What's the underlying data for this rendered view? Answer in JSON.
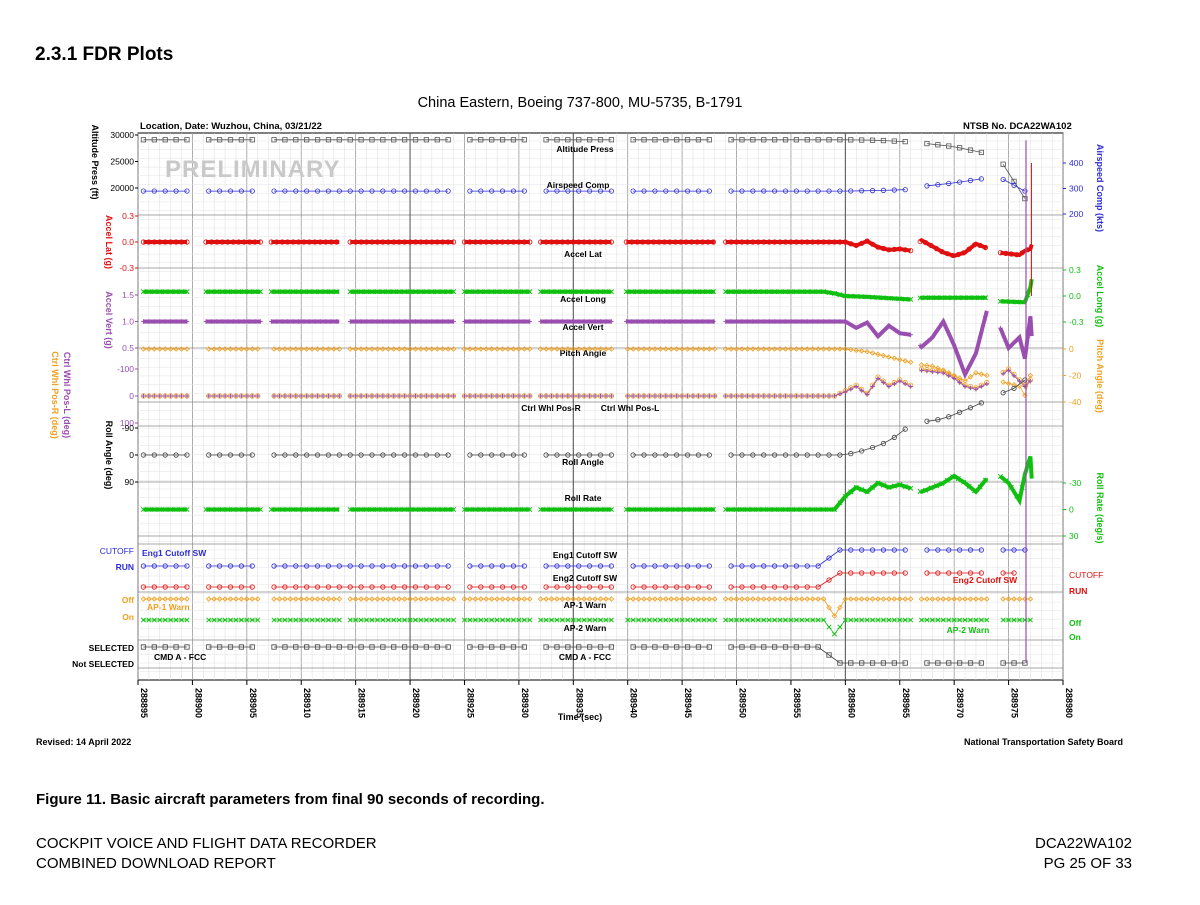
{
  "section": {
    "heading": "2.3.1  FDR Plots"
  },
  "figure": {
    "caption": "Figure 11. Basic aircraft parameters from final 90 seconds of recording.",
    "revised": "Revised: 14 April 2022",
    "board": "National Transportation Safety Board"
  },
  "footer": {
    "left_line1": "COCKPIT VOICE AND FLIGHT DATA RECORDER",
    "left_line2": "COMBINED DOWNLOAD REPORT",
    "right_line1": "DCA22WA102",
    "right_line2": "PG 25 OF 33"
  },
  "colors": {
    "altitude": "#555555",
    "airspeed": "#2b2bd6",
    "accel_lat": "#e01010",
    "accel_long": "#10c010",
    "accel_vert": "#9a4fb0",
    "pitch": "#f0a020",
    "ctrl_whl_r": "#f0a020",
    "ctrl_whl_l": "#9a4fb0",
    "roll_angle": "#444444",
    "roll_rate": "#10c010",
    "eng1": "#2b2bd6",
    "eng2": "#e01010",
    "ap1": "#f0a020",
    "ap2": "#10c010",
    "cmd_a": "#444444"
  },
  "chart_data": {
    "type": "line",
    "title": "China Eastern, Boeing 737-800, MU-5735, B-1791",
    "location_label": "Location, Date: Wuzhou, China, 03/21/22",
    "case_label": "NTSB No. DCA22WA102",
    "watermark": "PRELIMINARY",
    "xlabel": "Time (sec)",
    "xlim": [
      288895,
      288980
    ],
    "x_ticks": [
      "288895",
      "288900",
      "288905",
      "288910",
      "288915",
      "288920",
      "288925",
      "288930",
      "288935",
      "288940",
      "288945",
      "288950",
      "288955",
      "288960",
      "288965",
      "288970",
      "288975",
      "288980"
    ],
    "data_gaps": [
      [
        288899.5,
        288901.2
      ],
      [
        288906.3,
        288907.2
      ],
      [
        288913.6,
        288914.5
      ],
      [
        288924.0,
        288925.0
      ],
      [
        288931.0,
        288932.0
      ],
      [
        288938.5,
        288939.8
      ],
      [
        288948.0,
        288949.0
      ],
      [
        288966.0,
        288966.8
      ],
      [
        288973.0,
        288974.2
      ]
    ],
    "axes": {
      "altitude": {
        "label": "Altitude Press (ft)",
        "ticks": [
          "30000",
          "25000",
          "20000"
        ]
      },
      "airspeed": {
        "label": "Airspeed Comp (kts)",
        "ticks": [
          "400",
          "300",
          "200"
        ]
      },
      "accel_lat": {
        "label": "Accel Lat (g)",
        "ticks": [
          "0.3",
          "0.0",
          "-0.3"
        ]
      },
      "accel_long": {
        "label": "Accel Long (g)",
        "ticks": [
          "0.3",
          "0.0",
          "-0.3"
        ]
      },
      "accel_vert": {
        "label": "Accel Vert (g)",
        "ticks": [
          "1.5",
          "1.0",
          "0.5"
        ]
      },
      "pitch": {
        "label": "Pitch Angle (deg)",
        "ticks": [
          "0",
          "-20",
          "-40"
        ]
      },
      "ctrl_whl": {
        "label_l": "Ctrl Whl Pos-L (deg)",
        "label_r": "Ctrl Whl Pos-R (deg)",
        "ticks": [
          "-100",
          "0",
          "100"
        ]
      },
      "roll_angle": {
        "label": "Roll Angle (deg)",
        "ticks": [
          "-90",
          "0",
          "90"
        ]
      },
      "roll_rate": {
        "label": "Roll Rate (deg/s)",
        "ticks": [
          "-30",
          "0",
          "30"
        ]
      }
    },
    "discrete_labels": {
      "eng1_cutoff": "CUTOFF",
      "eng1_run": "RUN",
      "eng1_name": "Eng1 Cutoff SW",
      "eng2_cutoff": "CUTOFF",
      "eng2_run": "RUN",
      "eng2_name": "Eng2 Cutoff SW",
      "ap1_off": "Off",
      "ap1_on": "On",
      "ap1_name": "AP-1 Warn",
      "ap2_off": "Off",
      "ap2_on": "On",
      "ap2_name": "AP-2 Warn",
      "cmd_selected": "SELECTED",
      "cmd_not_selected": "Not SELECTED",
      "cmd_name": "CMD A - FCC"
    },
    "series": [
      {
        "name": "Altitude Press",
        "axis": "altitude",
        "marker": "square",
        "points": [
          [
            288895,
            29100
          ],
          [
            288959,
            29100
          ],
          [
            288960,
            29100
          ],
          [
            288963,
            29000
          ],
          [
            288966,
            28700
          ],
          [
            288967,
            28500
          ],
          [
            288970,
            27800
          ],
          [
            288973,
            26500
          ],
          [
            288974,
            26100
          ],
          [
            288976.5,
            18000
          ],
          [
            288977.2,
            28500
          ]
        ]
      },
      {
        "name": "Airspeed Comp",
        "axis": "airspeed",
        "marker": "circle",
        "points": [
          [
            288895,
            290
          ],
          [
            288959,
            290
          ],
          [
            288960,
            290
          ],
          [
            288963,
            292
          ],
          [
            288966,
            296
          ],
          [
            288967,
            308
          ],
          [
            288970,
            322
          ],
          [
            288974,
            347
          ],
          [
            288976.5,
            290
          ],
          [
            288977,
            380
          ],
          [
            288977.2,
            420
          ]
        ]
      },
      {
        "name": "Accel Lat",
        "axis": "accel_lat",
        "marker": "circle",
        "points": [
          [
            288895,
            0.0
          ],
          [
            288959,
            0.0
          ],
          [
            288960,
            0.0
          ],
          [
            288961,
            -0.04
          ],
          [
            288962,
            0.01
          ],
          [
            288963,
            -0.06
          ],
          [
            288964,
            -0.09
          ],
          [
            288965,
            -0.08
          ],
          [
            288966,
            -0.1
          ],
          [
            288967,
            0.02
          ],
          [
            288968,
            -0.05
          ],
          [
            288969,
            -0.12
          ],
          [
            288970,
            -0.16
          ],
          [
            288971,
            -0.12
          ],
          [
            288972,
            -0.02
          ],
          [
            288973,
            -0.07
          ],
          [
            288974,
            -0.12
          ],
          [
            288976,
            -0.15
          ],
          [
            288976.5,
            -0.1
          ],
          [
            288977,
            -0.08
          ],
          [
            288977.2,
            0.0
          ]
        ]
      },
      {
        "name": "Accel Long",
        "axis": "accel_long",
        "marker": "x",
        "points": [
          [
            288895,
            0.05
          ],
          [
            288958,
            0.05
          ],
          [
            288959,
            0.03
          ],
          [
            288960,
            0.0
          ],
          [
            288962,
            -0.01
          ],
          [
            288966,
            -0.04
          ],
          [
            288967,
            -0.02
          ],
          [
            288970,
            -0.02
          ],
          [
            288973,
            -0.02
          ],
          [
            288974,
            -0.06
          ],
          [
            288976,
            -0.07
          ],
          [
            288976.5,
            -0.07
          ],
          [
            288977,
            0.1
          ],
          [
            288977.2,
            0.25
          ]
        ]
      },
      {
        "name": "Accel Vert",
        "axis": "accel_vert",
        "marker": "plus",
        "points": [
          [
            288895,
            1.0
          ],
          [
            288959,
            1.0
          ],
          [
            288960,
            1.0
          ],
          [
            288961,
            0.88
          ],
          [
            288962,
            0.98
          ],
          [
            288963,
            0.72
          ],
          [
            288964,
            0.92
          ],
          [
            288965,
            0.78
          ],
          [
            288966,
            0.75
          ],
          [
            288967,
            0.52
          ],
          [
            288968,
            0.7
          ],
          [
            288969,
            1.0
          ],
          [
            288970,
            0.55
          ],
          [
            288971,
            0.0
          ],
          [
            288972,
            0.4
          ],
          [
            288973,
            1.2
          ],
          [
            288974,
            1.0
          ],
          [
            288975,
            0.5
          ],
          [
            288976,
            0.7
          ],
          [
            288976.5,
            0.3
          ],
          [
            288977,
            1.1
          ],
          [
            288977.2,
            0.5
          ]
        ]
      },
      {
        "name": "Pitch Angle",
        "axis": "pitch",
        "marker": "diamond",
        "points": [
          [
            288895,
            0.0
          ],
          [
            288959,
            0.0
          ],
          [
            288960,
            0.0
          ],
          [
            288962,
            -2
          ],
          [
            288964,
            -6
          ],
          [
            288966,
            -10
          ],
          [
            288967,
            -12
          ],
          [
            288968,
            -13
          ],
          [
            288969,
            -16
          ],
          [
            288970,
            -20
          ],
          [
            288971,
            -24
          ],
          [
            288972,
            -18
          ],
          [
            288973,
            -20
          ],
          [
            288974,
            -24
          ],
          [
            288976,
            -28
          ],
          [
            288976.5,
            -35
          ],
          [
            288977,
            -20
          ],
          [
            288977.2,
            -30
          ]
        ]
      },
      {
        "name": "Ctrl Whl Pos-R",
        "axis": "ctrl_whl",
        "marker": "circle",
        "points": [
          [
            288895,
            0
          ],
          [
            288959,
            0
          ],
          [
            288960,
            -20
          ],
          [
            288961,
            -40
          ],
          [
            288962,
            -10
          ],
          [
            288963,
            -70
          ],
          [
            288964,
            -40
          ],
          [
            288965,
            -60
          ],
          [
            288966,
            -40
          ],
          [
            288967,
            -100
          ],
          [
            288969,
            -90
          ],
          [
            288970,
            -70
          ],
          [
            288971,
            -40
          ],
          [
            288972,
            -30
          ],
          [
            288973,
            -50
          ],
          [
            288975,
            -100
          ],
          [
            288976,
            -60
          ],
          [
            288976.5,
            -40
          ],
          [
            288977,
            -60
          ]
        ]
      },
      {
        "name": "Ctrl Whl Pos-L",
        "axis": "ctrl_whl",
        "marker": "plus",
        "points": [
          [
            288895,
            0
          ],
          [
            288959,
            0
          ],
          [
            288960,
            -15
          ],
          [
            288961,
            -35
          ],
          [
            288962,
            -5
          ],
          [
            288963,
            -65
          ],
          [
            288964,
            -35
          ],
          [
            288965,
            -55
          ],
          [
            288966,
            -35
          ],
          [
            288967,
            -95
          ],
          [
            288969,
            -85
          ],
          [
            288970,
            -65
          ],
          [
            288971,
            -35
          ],
          [
            288972,
            -25
          ],
          [
            288973,
            -45
          ],
          [
            288975,
            -95
          ],
          [
            288976,
            -55
          ],
          [
            288976.5,
            -35
          ],
          [
            288977,
            -55
          ]
        ]
      },
      {
        "name": "Roll Angle",
        "axis": "roll_angle",
        "marker": "circle",
        "points": [
          [
            288895,
            0
          ],
          [
            288959,
            0
          ],
          [
            288960,
            0
          ],
          [
            288962,
            -18
          ],
          [
            288964,
            -45
          ],
          [
            288966,
            -100
          ],
          [
            288967,
            -110
          ],
          [
            288969,
            -120
          ],
          [
            288970,
            -135
          ],
          [
            288972,
            -165
          ],
          [
            288974,
            -200
          ],
          [
            288976,
            -230
          ],
          [
            288976.5,
            -250
          ],
          [
            288977,
            -200
          ],
          [
            288977.2,
            60
          ]
        ]
      },
      {
        "name": "Roll Rate",
        "axis": "roll_rate",
        "marker": "x",
        "points": [
          [
            288895,
            0
          ],
          [
            288959,
            0
          ],
          [
            288960,
            -15
          ],
          [
            288961,
            -25
          ],
          [
            288962,
            -20
          ],
          [
            288963,
            -30
          ],
          [
            288964,
            -25
          ],
          [
            288965,
            -28
          ],
          [
            288966,
            -24
          ],
          [
            288967,
            -20
          ],
          [
            288968,
            -25
          ],
          [
            288969,
            -30
          ],
          [
            288970,
            -38
          ],
          [
            288971,
            -30
          ],
          [
            288972,
            -20
          ],
          [
            288973,
            -35
          ],
          [
            288974,
            -40
          ],
          [
            288975,
            -30
          ],
          [
            288976,
            -10
          ],
          [
            288976.5,
            -40
          ],
          [
            288977,
            -60
          ],
          [
            288977.2,
            -20
          ]
        ]
      },
      {
        "name": "Eng1 Cutoff SW",
        "axis": "eng1",
        "marker": "circle",
        "points": [
          [
            288895,
            0
          ],
          [
            288958,
            0
          ],
          [
            288959,
            1
          ],
          [
            288966,
            1
          ],
          [
            288967,
            1
          ],
          [
            288976,
            1
          ],
          [
            288977,
            1
          ]
        ]
      },
      {
        "name": "Eng2 Cutoff SW",
        "axis": "eng2",
        "marker": "circle",
        "points": [
          [
            288895,
            0
          ],
          [
            288958,
            0
          ],
          [
            288959,
            1
          ],
          [
            288966,
            1
          ],
          [
            288967,
            1
          ],
          [
            288976,
            1
          ]
        ]
      },
      {
        "name": "AP-1 Warn",
        "axis": "ap1",
        "marker": "diamond",
        "points": [
          [
            288895,
            1
          ],
          [
            288958,
            1
          ],
          [
            288959,
            0
          ],
          [
            288960,
            1
          ],
          [
            288966,
            1
          ],
          [
            288967,
            1
          ],
          [
            288976,
            1
          ],
          [
            288977,
            1
          ]
        ]
      },
      {
        "name": "AP-2 Warn",
        "axis": "ap2",
        "marker": "x",
        "points": [
          [
            288895,
            1
          ],
          [
            288958,
            1
          ],
          [
            288959,
            0
          ],
          [
            288960,
            1
          ],
          [
            288966,
            1
          ],
          [
            288967,
            1
          ],
          [
            288976,
            1
          ],
          [
            288977,
            1
          ]
        ]
      },
      {
        "name": "CMD A - FCC",
        "axis": "cmd",
        "marker": "square",
        "points": [
          [
            288895,
            1
          ],
          [
            288958,
            1
          ],
          [
            288959,
            0
          ],
          [
            288966,
            0
          ],
          [
            288967,
            0
          ],
          [
            288976,
            0
          ],
          [
            288977,
            0
          ]
        ]
      }
    ]
  }
}
